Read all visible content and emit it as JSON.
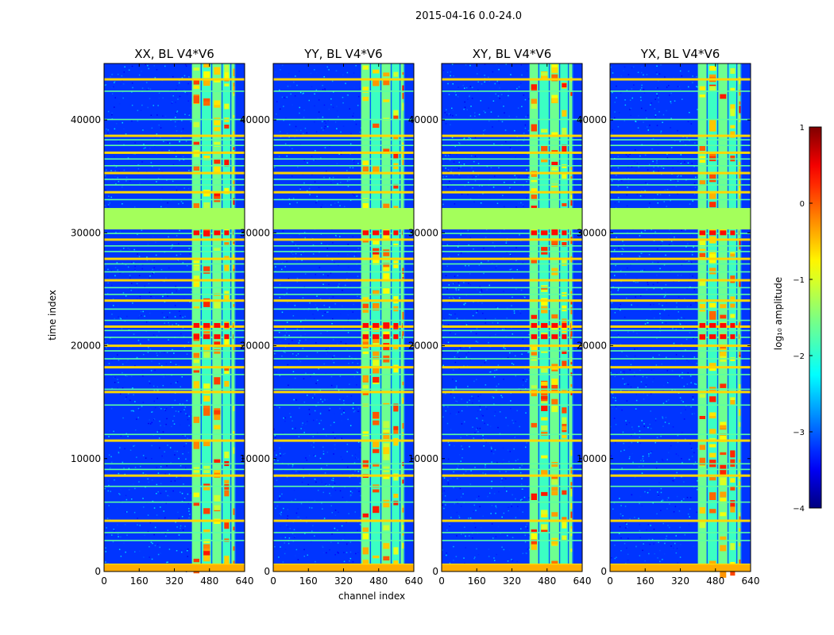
{
  "figure": {
    "suptitle": "2015-04-16 0.0-24.0",
    "xlabel": "channel index",
    "ylabel": "time index",
    "colorbar_label": "log₁₀ amplitude"
  },
  "chart_data": {
    "type": "heatmap",
    "title": "2015-04-16 0.0-24.0",
    "xlabel": "channel index",
    "ylabel": "time index",
    "xlim": [
      0,
      640
    ],
    "ylim": [
      0,
      45000
    ],
    "x_ticks": [
      "0",
      "160",
      "320",
      "480",
      "640"
    ],
    "x_tick_values": [
      0,
      160,
      320,
      480,
      640
    ],
    "y_ticks": [
      "0",
      "10000",
      "20000",
      "30000",
      "40000"
    ],
    "y_tick_values": [
      0,
      10000,
      20000,
      30000,
      40000
    ],
    "panels": [
      {
        "title": "XX, BL V4*V6",
        "pol": "XX"
      },
      {
        "title": "YY, BL V4*V6",
        "pol": "YY"
      },
      {
        "title": "XY, BL V4*V6",
        "pol": "XY"
      },
      {
        "title": "YX, BL V4*V6",
        "pol": "YX"
      }
    ],
    "colorbar": {
      "label": "log₁₀ amplitude",
      "range": [
        -4,
        1
      ],
      "ticks": [
        "1",
        "0",
        "−1",
        "−2",
        "−3",
        "−4"
      ],
      "tick_values": [
        1,
        0,
        -1,
        -2,
        -3,
        -4
      ],
      "colormap": "jet"
    },
    "features": {
      "active_channel_range": [
        400,
        600
      ],
      "active_channel_edges": [
        400,
        445,
        493,
        540,
        580,
        600
      ],
      "flagged_time_block": [
        30300,
        32200
      ],
      "flagged_level": -1.3,
      "background_level": -3.2
    }
  },
  "colors": {
    "jet_stops": [
      "#00007f",
      "#0000ff",
      "#00ffff",
      "#7fff7f",
      "#ffff00",
      "#ff0000",
      "#7f0000"
    ]
  }
}
